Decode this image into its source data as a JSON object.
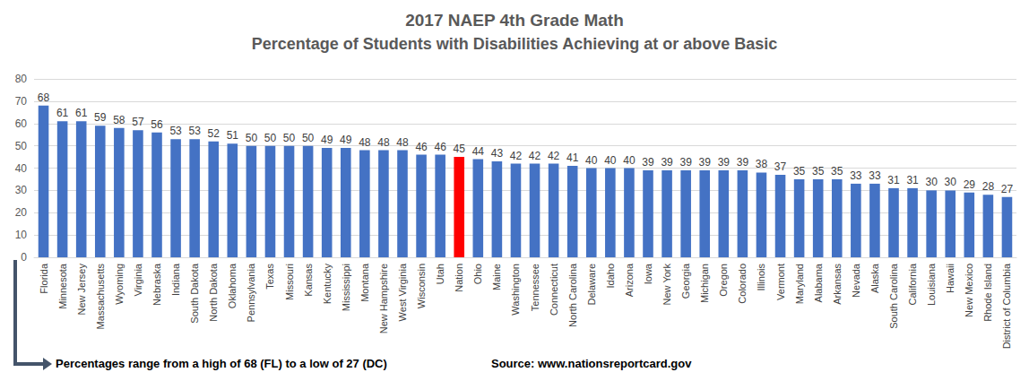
{
  "chart_data": {
    "type": "bar",
    "title": "2017 NAEP 4th Grade Math",
    "subtitle": "Percentage of Students with Disabilities Achieving at or above Basic",
    "annotations": [
      "Percentages range from a high of 68 (FL) to a low of 27 (DC)",
      "Source: www.nationsreportcard.gov"
    ],
    "categories": [
      "Florida",
      "Minnesota",
      "New Jersey",
      "Massachusetts",
      "Wyoming",
      "Virginia",
      "Nebraska",
      "Indiana",
      "South Dakota",
      "North Dakota",
      "Oklahoma",
      "Pennsylvania",
      "Texas",
      "Missouri",
      "Kansas",
      "Kentucky",
      "Mississippi",
      "Montana",
      "New Hampshire",
      "West Virginia",
      "Wisconsin",
      "Utah",
      "Nation",
      "Ohio",
      "Maine",
      "Washington",
      "Tennessee",
      "Connecticut",
      "North Carolina",
      "Delaware",
      "Idaho",
      "Arizona",
      "Iowa",
      "New York",
      "Georgia",
      "Michigan",
      "Oregon",
      "Colorado",
      "Illinois",
      "Vermont",
      "Maryland",
      "Alabama",
      "Arkansas",
      "Nevada",
      "Alaska",
      "South Carolina",
      "California",
      "Louisiana",
      "Hawaii",
      "New Mexico",
      "Rhode Island",
      "District of Columbia"
    ],
    "values": [
      68,
      61,
      61,
      59,
      58,
      57,
      56,
      53,
      53,
      52,
      51,
      50,
      50,
      50,
      50,
      49,
      49,
      48,
      48,
      48,
      46,
      46,
      45,
      44,
      43,
      42,
      42,
      42,
      41,
      40,
      40,
      40,
      39,
      39,
      39,
      39,
      39,
      39,
      38,
      37,
      35,
      35,
      35,
      33,
      33,
      31,
      31,
      30,
      30,
      29,
      28,
      27
    ],
    "colors": [
      "#4472c4",
      "#4472c4",
      "#4472c4",
      "#4472c4",
      "#4472c4",
      "#4472c4",
      "#4472c4",
      "#4472c4",
      "#4472c4",
      "#4472c4",
      "#4472c4",
      "#4472c4",
      "#4472c4",
      "#4472c4",
      "#4472c4",
      "#4472c4",
      "#4472c4",
      "#4472c4",
      "#4472c4",
      "#4472c4",
      "#4472c4",
      "#4472c4",
      "#ff0000",
      "#4472c4",
      "#4472c4",
      "#4472c4",
      "#4472c4",
      "#4472c4",
      "#4472c4",
      "#4472c4",
      "#4472c4",
      "#4472c4",
      "#4472c4",
      "#4472c4",
      "#4472c4",
      "#4472c4",
      "#4472c4",
      "#4472c4",
      "#4472c4",
      "#4472c4",
      "#4472c4",
      "#4472c4",
      "#4472c4",
      "#4472c4",
      "#4472c4",
      "#4472c4",
      "#4472c4",
      "#4472c4",
      "#4472c4",
      "#4472c4",
      "#4472c4",
      "#4472c4"
    ],
    "ylim": [
      0,
      80
    ],
    "yticks": [
      0,
      10,
      20,
      30,
      40,
      50,
      60,
      70,
      80
    ],
    "grid": true,
    "data_labels": true
  }
}
